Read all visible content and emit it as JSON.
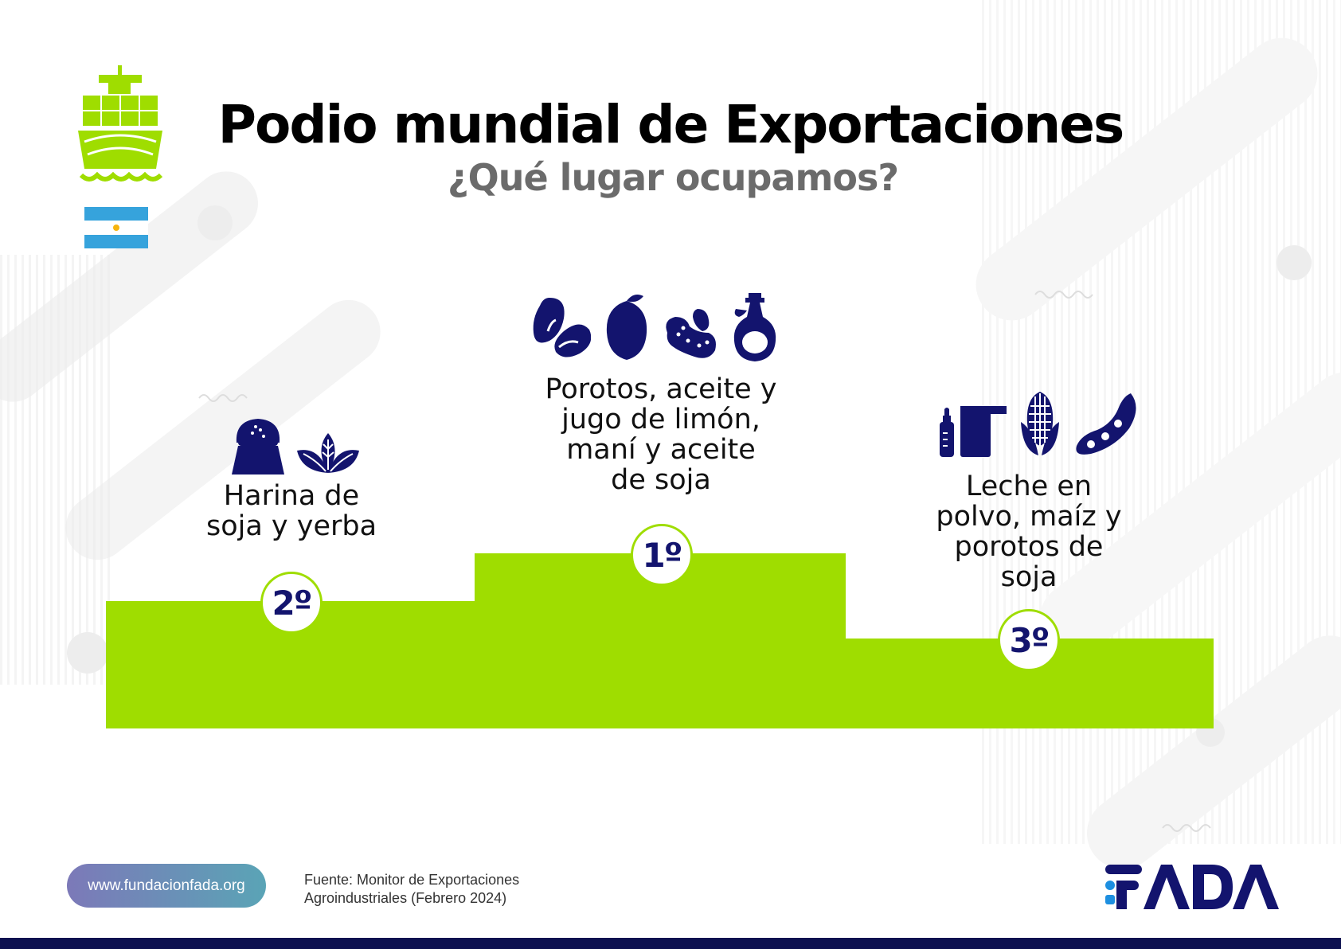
{
  "header": {
    "title": "Podio mundial de Exportaciones",
    "subtitle": "¿Qué lugar ocupamos?"
  },
  "podium": [
    {
      "position": "1º",
      "label_lines": [
        "Porotos, aceite y",
        "jugo de limón,",
        "maní y aceite",
        "de soja"
      ],
      "icons": [
        "beans-icon",
        "lemon-icon",
        "peanut-icon",
        "oil-bottle-icon"
      ]
    },
    {
      "position": "2º",
      "label_lines": [
        "Harina de",
        "soja y yerba"
      ],
      "icons": [
        "flour-sack-icon",
        "yerba-leaves-icon"
      ]
    },
    {
      "position": "3º",
      "label_lines": [
        "Leche en",
        "polvo, maíz y",
        "porotos de",
        "soja"
      ],
      "icons": [
        "milk-powder-icon",
        "corn-icon",
        "soy-pod-icon"
      ]
    }
  ],
  "footer": {
    "url": "www.fundacionfada.org",
    "source_line1": "Fuente: Monitor de Exportaciones",
    "source_line2": "Agroindustriales (Febrero 2024)",
    "logo_text": "FADA"
  },
  "colors": {
    "podium": "#9fdd00",
    "icons": "#13146e",
    "flag_blue": "#36a3dc",
    "flag_sun": "#f6b40e",
    "bottom_bar": "#0d1150"
  }
}
